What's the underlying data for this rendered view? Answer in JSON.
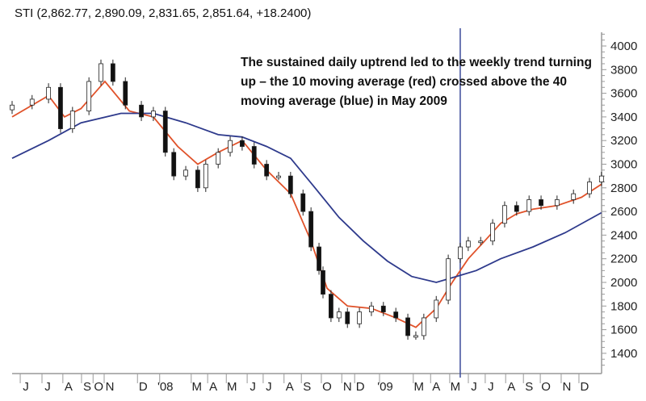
{
  "chart_data": {
    "type": "candlestick",
    "title": "STI (2,862.77, 2,890.09, 2,831.65, 2,851.64, +18.2400)",
    "annotation": "The sustained daily uptrend led to the weekly trend turning up – the 10 moving average (red) crossed above the 40 moving average (blue) in May 2009",
    "xlabel": "",
    "ylabel": "",
    "ylim": [
      1300,
      4150
    ],
    "xlim_weeks": [
      0,
      133
    ],
    "y_ticks": [
      4000,
      3800,
      3600,
      3400,
      3200,
      3000,
      2800,
      2600,
      2400,
      2200,
      2000,
      1800,
      1600,
      1400
    ],
    "x_ticks": [
      {
        "label": "J",
        "week": 3.1
      },
      {
        "label": "J",
        "week": 8
      },
      {
        "label": "A",
        "week": 12.7
      },
      {
        "label": "S",
        "week": 16.9
      },
      {
        "label": "O",
        "week": 19.5
      },
      {
        "label": "N",
        "week": 22
      },
      {
        "label": "D",
        "week": 29.5
      },
      {
        "label": "'08",
        "week": 34.5
      },
      {
        "label": "M",
        "week": 41.6
      },
      {
        "label": "A",
        "week": 45.3
      },
      {
        "label": "M",
        "week": 49.5
      },
      {
        "label": "J",
        "week": 54.2
      },
      {
        "label": "J",
        "week": 57.8
      },
      {
        "label": "A",
        "week": 62.5
      },
      {
        "label": "S",
        "week": 66.4
      },
      {
        "label": "O",
        "week": 70.9
      },
      {
        "label": "N",
        "week": 75.5
      },
      {
        "label": "D",
        "week": 78.4
      },
      {
        "label": "'09",
        "week": 84
      },
      {
        "label": "M",
        "week": 91.6
      },
      {
        "label": "A",
        "week": 95.5
      },
      {
        "label": "M",
        "week": 99.8
      },
      {
        "label": "J",
        "week": 104
      },
      {
        "label": "J",
        "week": 107.8
      },
      {
        "label": "A",
        "week": 112.4
      },
      {
        "label": "S",
        "week": 116.4
      },
      {
        "label": "O",
        "week": 120.2
      },
      {
        "label": "N",
        "week": 124.9
      },
      {
        "label": "D",
        "week": 128.9
      }
    ],
    "marker_week": 100.9,
    "closes": [
      [
        0,
        3500
      ],
      [
        4.5,
        3550
      ],
      [
        8.2,
        3650
      ],
      [
        10.9,
        3300
      ],
      [
        13.6,
        3450
      ],
      [
        17.3,
        3700
      ],
      [
        20,
        3850
      ],
      [
        22.7,
        3700
      ],
      [
        25.5,
        3500
      ],
      [
        29.1,
        3400
      ],
      [
        31.8,
        3450
      ],
      [
        34.5,
        3100
      ],
      [
        36.4,
        2900
      ],
      [
        39.1,
        2950
      ],
      [
        41.8,
        2800
      ],
      [
        43.6,
        3000
      ],
      [
        46.4,
        3100
      ],
      [
        49.1,
        3200
      ],
      [
        51.8,
        3150
      ],
      [
        54.5,
        3000
      ],
      [
        57.3,
        2900
      ],
      [
        60,
        2900
      ],
      [
        62.7,
        2750
      ],
      [
        65.5,
        2600
      ],
      [
        67.3,
        2300
      ],
      [
        69.1,
        2100
      ],
      [
        70,
        1900
      ],
      [
        71.8,
        1700
      ],
      [
        73.6,
        1750
      ],
      [
        75.5,
        1650
      ],
      [
        78.2,
        1750
      ],
      [
        80.9,
        1800
      ],
      [
        83.6,
        1750
      ],
      [
        86.4,
        1700
      ],
      [
        89.1,
        1550
      ],
      [
        90.9,
        1550
      ],
      [
        92.7,
        1700
      ],
      [
        95.5,
        1850
      ],
      [
        98.2,
        2200
      ],
      [
        100.9,
        2300
      ],
      [
        102.7,
        2350
      ],
      [
        105.5,
        2350
      ],
      [
        108.2,
        2500
      ],
      [
        110.9,
        2650
      ],
      [
        113.6,
        2600
      ],
      [
        116.4,
        2700
      ],
      [
        119.1,
        2650
      ],
      [
        122.7,
        2700
      ],
      [
        126.4,
        2750
      ],
      [
        130,
        2850
      ],
      [
        132.7,
        2900
      ]
    ],
    "series": [
      {
        "name": "10 moving average",
        "color": "#e0522a",
        "points": [
          [
            0,
            3400
          ],
          [
            8.2,
            3580
          ],
          [
            11.8,
            3400
          ],
          [
            15.5,
            3470
          ],
          [
            20.9,
            3700
          ],
          [
            26.4,
            3450
          ],
          [
            31.8,
            3400
          ],
          [
            37.3,
            3150
          ],
          [
            41.8,
            3000
          ],
          [
            46.4,
            3100
          ],
          [
            51.8,
            3200
          ],
          [
            57.3,
            2950
          ],
          [
            62.7,
            2750
          ],
          [
            67.3,
            2350
          ],
          [
            70.9,
            1950
          ],
          [
            75.5,
            1800
          ],
          [
            80.9,
            1780
          ],
          [
            86.4,
            1700
          ],
          [
            90.9,
            1620
          ],
          [
            95.5,
            1780
          ],
          [
            99.1,
            2000
          ],
          [
            102.7,
            2200
          ],
          [
            106.4,
            2350
          ],
          [
            110,
            2500
          ],
          [
            113.6,
            2580
          ],
          [
            117.3,
            2620
          ],
          [
            122.7,
            2650
          ],
          [
            128.2,
            2720
          ],
          [
            132.7,
            2830
          ]
        ]
      },
      {
        "name": "40 moving average",
        "color": "#2e3a8c",
        "points": [
          [
            0,
            3050
          ],
          [
            8.2,
            3200
          ],
          [
            15.5,
            3350
          ],
          [
            24.5,
            3430
          ],
          [
            31.8,
            3430
          ],
          [
            39.1,
            3350
          ],
          [
            46.4,
            3250
          ],
          [
            51.8,
            3230
          ],
          [
            57.3,
            3150
          ],
          [
            62.7,
            3050
          ],
          [
            68.2,
            2800
          ],
          [
            73.6,
            2550
          ],
          [
            79.1,
            2350
          ],
          [
            84.5,
            2180
          ],
          [
            90,
            2050
          ],
          [
            95.5,
            2000
          ],
          [
            100,
            2050
          ],
          [
            104.5,
            2100
          ],
          [
            110,
            2200
          ],
          [
            117.3,
            2300
          ],
          [
            124.5,
            2420
          ],
          [
            132.7,
            2590
          ]
        ]
      }
    ]
  }
}
